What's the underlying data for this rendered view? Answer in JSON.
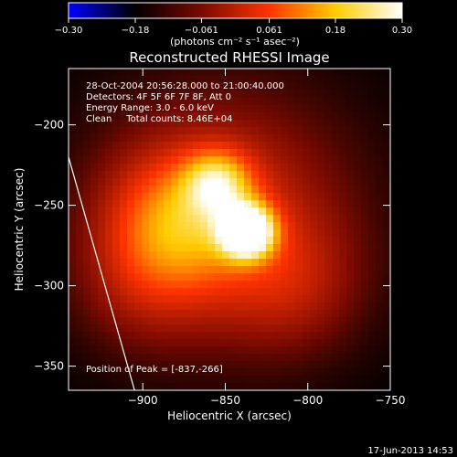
{
  "chart_data": {
    "type": "heatmap",
    "title": "Reconstructed RHESSI Image",
    "xlabel": "Heliocentric X (arcsec)",
    "ylabel": "Heliocentric Y (arcsec)",
    "xlim": [
      -945,
      -750
    ],
    "ylim": [
      -365,
      -165
    ],
    "x_ticks": [
      -900,
      -850,
      -800,
      -750
    ],
    "x_tick_labels": [
      "−900",
      "−850",
      "−800",
      "−750"
    ],
    "y_ticks": [
      -200,
      -250,
      -300,
      -350
    ],
    "y_tick_labels": [
      "−200",
      "−250",
      "−300",
      "−350"
    ],
    "colorbar": {
      "range": [
        -0.3,
        0.3
      ],
      "ticks": [
        -0.3,
        -0.18,
        -0.061,
        0.061,
        0.18,
        0.3
      ],
      "tick_labels": [
        "−0.30",
        "−0.18",
        "−0.061",
        "0.061",
        "0.18",
        "0.30"
      ],
      "units": "(photons cm⁻² s⁻¹ asec⁻²)",
      "colors": [
        "#0000ff",
        "#000000",
        "#7a0a00",
        "#ff3300",
        "#ffcc00",
        "#ffffff"
      ]
    },
    "annotations": [
      "28-Oct-2004 20:56:28.000 to 21:00:40.000",
      "Detectors: 4F 5F 6F 7F 8F, Att 0",
      "Energy Range: 3.0 - 6.0 keV",
      "Clean     Total counts: 8.46E+04"
    ],
    "peak_label": "Position of Peak = [-837,-266]",
    "peak": [
      -837,
      -266
    ],
    "limb_line": [
      [
        -945,
        -220
      ],
      [
        -905,
        -365
      ]
    ],
    "components": [
      {
        "x": -837,
        "y": -266,
        "amplitude": 0.3,
        "sigma": 11
      },
      {
        "x": -855,
        "y": -236,
        "amplitude": 0.14,
        "sigma": 14
      },
      {
        "x": -880,
        "y": -260,
        "amplitude": 0.12,
        "sigma": 30
      },
      {
        "x": -850,
        "y": -255,
        "amplitude": 0.11,
        "sigma": 55
      },
      {
        "x": -810,
        "y": -300,
        "amplitude": 0.06,
        "sigma": 30
      },
      {
        "x": -900,
        "y": -300,
        "amplitude": 0.05,
        "sigma": 30
      }
    ],
    "footer_timestamp": "17-Jun-2013 14:53"
  }
}
